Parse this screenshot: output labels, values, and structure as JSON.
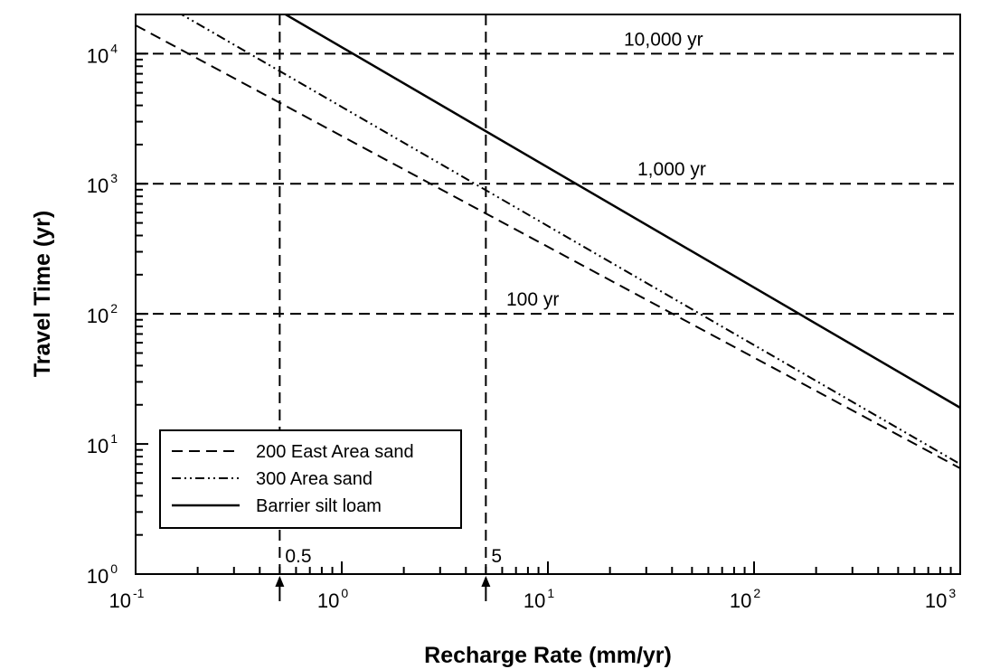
{
  "chart_data": {
    "type": "line",
    "xlabel": "Recharge Rate (mm/yr)",
    "ylabel": "Travel Time (yr)",
    "xscale": "log",
    "yscale": "log",
    "xlim": [
      0.1,
      1000
    ],
    "ylim": [
      1,
      20000
    ],
    "x_ticks": [
      {
        "value": 0.1,
        "base": "10",
        "exp": "-1"
      },
      {
        "value": 1,
        "base": "10",
        "exp": "0"
      },
      {
        "value": 10,
        "base": "10",
        "exp": "1"
      },
      {
        "value": 100,
        "base": "10",
        "exp": "2"
      },
      {
        "value": 1000,
        "base": "10",
        "exp": "3"
      }
    ],
    "y_ticks": [
      {
        "value": 1,
        "base": "10",
        "exp": "0"
      },
      {
        "value": 10,
        "base": "10",
        "exp": "1"
      },
      {
        "value": 100,
        "base": "10",
        "exp": "2"
      },
      {
        "value": 1000,
        "base": "10",
        "exp": "3"
      },
      {
        "value": 10000,
        "base": "10",
        "exp": "4"
      }
    ],
    "series": [
      {
        "name": "200 East Area sand",
        "style": "dashed",
        "x": [
          0.1,
          1000
        ],
        "y": [
          16500,
          6.5
        ]
      },
      {
        "name": "300 Area sand",
        "style": "dashdotdot",
        "x": [
          0.1,
          1000
        ],
        "y": [
          32000,
          7.0
        ]
      },
      {
        "name": "Barrier silt loam",
        "style": "solid",
        "x": [
          0.1,
          1000
        ],
        "y": [
          94000,
          19.0
        ]
      }
    ],
    "reference_lines": [
      {
        "orientation": "horizontal",
        "value": 10000,
        "label": "10,000  yr"
      },
      {
        "orientation": "horizontal",
        "value": 1000,
        "label": "1,000  yr"
      },
      {
        "orientation": "horizontal",
        "value": 100,
        "label": "100  yr"
      },
      {
        "orientation": "vertical",
        "value": 0.5,
        "label": "0.5"
      },
      {
        "orientation": "vertical",
        "value": 5,
        "label": "5"
      }
    ],
    "legend_position": "lower-left",
    "grid": false
  }
}
